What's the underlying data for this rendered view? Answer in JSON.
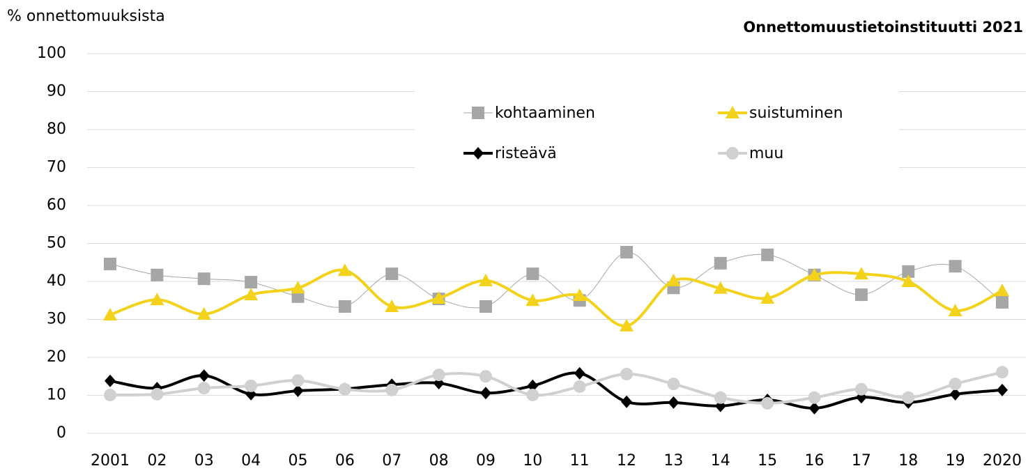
{
  "chart_data": {
    "type": "line",
    "y_label": "% onnettomuuksista",
    "source": "Onnettomuustietoinstituutti  2021",
    "categories": [
      "2001",
      "02",
      "03",
      "04",
      "05",
      "06",
      "07",
      "08",
      "09",
      "10",
      "11",
      "12",
      "13",
      "14",
      "15",
      "16",
      "17",
      "18",
      "19",
      "2020"
    ],
    "series": [
      {
        "name": "kohtaaminen",
        "color": "#a6a6a6",
        "marker": "square",
        "line_width": 1,
        "values": [
          44.6,
          41.7,
          40.7,
          39.8,
          36,
          33.4,
          42,
          35.4,
          33.4,
          42,
          35,
          47.7,
          38.3,
          44.8,
          47,
          41.7,
          36.5,
          42.6,
          44,
          34.5
        ]
      },
      {
        "name": "suistuminen",
        "color": "#f2d21b",
        "marker": "triangle",
        "line_width": 4,
        "values": [
          31.2,
          35.2,
          31.4,
          36.5,
          38.3,
          42.9,
          33.4,
          35.6,
          40.2,
          35,
          36.3,
          28.3,
          40.2,
          38.2,
          35.6,
          41.7,
          42,
          40,
          32.3,
          37.6
        ]
      },
      {
        "name": "risteävä",
        "color": "#000000",
        "marker": "diamond",
        "line_width": 4,
        "values": [
          13.8,
          11.9,
          15.2,
          10.3,
          11.2,
          11.7,
          12.8,
          13.2,
          10.6,
          12.5,
          15.8,
          8.3,
          8.1,
          7.2,
          8.8,
          6.6,
          9.5,
          8.1,
          10.3,
          11.4
        ]
      },
      {
        "name": "muu",
        "color": "#d0d0d0",
        "marker": "circle",
        "line_width": 4,
        "values": [
          10.1,
          10.3,
          11.9,
          12.5,
          13.9,
          11.6,
          11.4,
          15.4,
          15,
          10.1,
          12.3,
          15.6,
          13,
          9.4,
          7.9,
          9.4,
          11.6,
          9.4,
          13,
          16.1
        ]
      }
    ],
    "ylim": [
      0,
      100
    ],
    "yticks": [
      0,
      10,
      20,
      30,
      40,
      50,
      60,
      70,
      80,
      90,
      100
    ],
    "grid": true
  }
}
